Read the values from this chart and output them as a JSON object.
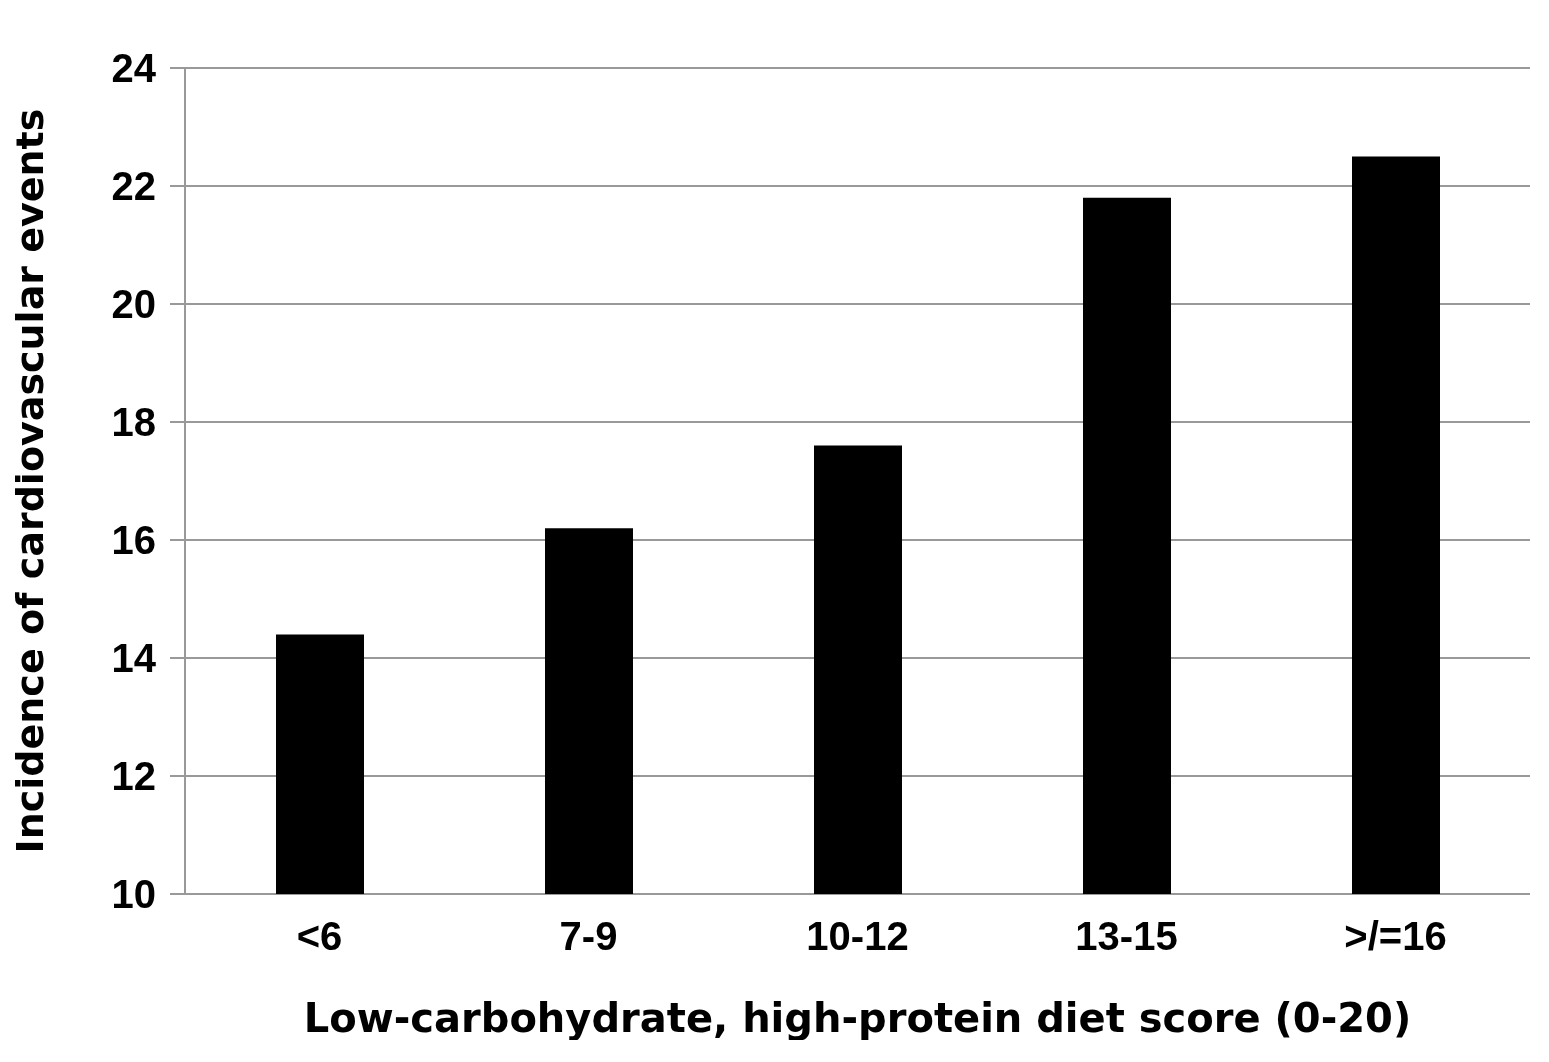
{
  "chart_data": {
    "type": "bar",
    "xlabel": "Low-carbohydrate, high-protein diet score (0-20)",
    "ylabel": "Incidence of cardiovascular events",
    "categories": [
      "<6",
      "7-9",
      "10-12",
      "13-15",
      ">/=16"
    ],
    "values": [
      14.4,
      16.2,
      17.6,
      21.8,
      22.5
    ],
    "color": "#000000",
    "ylim": [
      10,
      24
    ],
    "yticks": [
      10,
      12,
      14,
      16,
      18,
      20,
      22,
      24
    ],
    "grid": "y"
  }
}
